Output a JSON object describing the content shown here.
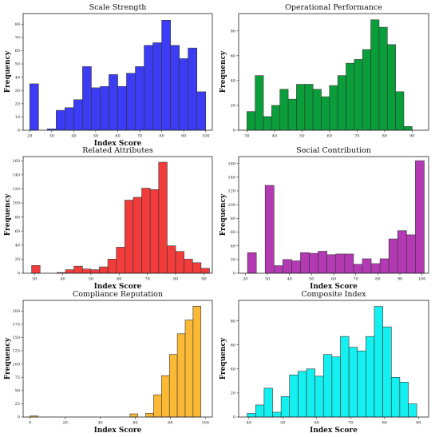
{
  "chart_data": [
    {
      "type": "bar",
      "title": "Scale Strength",
      "xlabel": "Index Score",
      "ylabel": "Frequency",
      "color": "#3c3cf4",
      "xlim": [
        17,
        103
      ],
      "ylim": [
        0,
        88
      ],
      "xticks": [
        20,
        30,
        40,
        50,
        60,
        70,
        80,
        90,
        100
      ],
      "yticks": [
        0,
        10,
        20,
        30,
        40,
        50,
        60,
        70,
        80
      ],
      "bins": [
        {
          "x0": 20,
          "x1": 24,
          "count": 35
        },
        {
          "x0": 28,
          "x1": 32,
          "count": 1
        },
        {
          "x0": 32,
          "x1": 36,
          "count": 15
        },
        {
          "x0": 36,
          "x1": 40,
          "count": 17
        },
        {
          "x0": 40,
          "x1": 44,
          "count": 23
        },
        {
          "x0": 44,
          "x1": 48,
          "count": 48
        },
        {
          "x0": 48,
          "x1": 52,
          "count": 32
        },
        {
          "x0": 52,
          "x1": 56,
          "count": 33
        },
        {
          "x0": 56,
          "x1": 60,
          "count": 42
        },
        {
          "x0": 60,
          "x1": 64,
          "count": 33
        },
        {
          "x0": 64,
          "x1": 68,
          "count": 43
        },
        {
          "x0": 68,
          "x1": 72,
          "count": 48
        },
        {
          "x0": 72,
          "x1": 76,
          "count": 64
        },
        {
          "x0": 76,
          "x1": 80,
          "count": 66
        },
        {
          "x0": 80,
          "x1": 84,
          "count": 83
        },
        {
          "x0": 84,
          "x1": 88,
          "count": 64
        },
        {
          "x0": 88,
          "x1": 92,
          "count": 54
        },
        {
          "x0": 92,
          "x1": 96,
          "count": 62
        },
        {
          "x0": 96,
          "x1": 100,
          "count": 29
        }
      ]
    },
    {
      "type": "bar",
      "title": "Operational Performance",
      "xlabel": "",
      "ylabel": "Frequency",
      "color": "#0a9e3a",
      "xlim": [
        27,
        96
      ],
      "ylim": [
        0,
        94
      ],
      "xticks": [
        30,
        40,
        50,
        60,
        70,
        80,
        90
      ],
      "yticks": [
        0,
        20,
        40,
        60,
        80
      ],
      "bins": [
        {
          "x0": 30,
          "x1": 33,
          "count": 15
        },
        {
          "x0": 33,
          "x1": 36,
          "count": 44
        },
        {
          "x0": 36,
          "x1": 39,
          "count": 11
        },
        {
          "x0": 39,
          "x1": 42,
          "count": 20
        },
        {
          "x0": 42,
          "x1": 45,
          "count": 33
        },
        {
          "x0": 45,
          "x1": 48,
          "count": 25
        },
        {
          "x0": 48,
          "x1": 51,
          "count": 37
        },
        {
          "x0": 51,
          "x1": 54,
          "count": 37
        },
        {
          "x0": 54,
          "x1": 57,
          "count": 33
        },
        {
          "x0": 57,
          "x1": 60,
          "count": 27
        },
        {
          "x0": 60,
          "x1": 63,
          "count": 36
        },
        {
          "x0": 63,
          "x1": 66,
          "count": 44
        },
        {
          "x0": 66,
          "x1": 69,
          "count": 54
        },
        {
          "x0": 69,
          "x1": 72,
          "count": 57
        },
        {
          "x0": 72,
          "x1": 75,
          "count": 65
        },
        {
          "x0": 75,
          "x1": 78,
          "count": 89
        },
        {
          "x0": 78,
          "x1": 81,
          "count": 83
        },
        {
          "x0": 81,
          "x1": 84,
          "count": 69
        },
        {
          "x0": 84,
          "x1": 87,
          "count": 31
        },
        {
          "x0": 87,
          "x1": 90,
          "count": 3
        }
      ]
    },
    {
      "type": "bar",
      "title": "Related Attributes",
      "xlabel": "Index Score",
      "ylabel": "Frequency",
      "color": "#f23c3c",
      "xlim": [
        26,
        93
      ],
      "ylim": [
        0,
        166
      ],
      "xticks": [
        30,
        40,
        50,
        60,
        70,
        80,
        90
      ],
      "yticks": [
        0,
        20,
        40,
        60,
        80,
        100,
        120,
        140,
        160
      ],
      "bins": [
        {
          "x0": 29,
          "x1": 32,
          "count": 11
        },
        {
          "x0": 38,
          "x1": 41,
          "count": 1
        },
        {
          "x0": 41,
          "x1": 44,
          "count": 5
        },
        {
          "x0": 44,
          "x1": 47,
          "count": 10
        },
        {
          "x0": 47,
          "x1": 50,
          "count": 6
        },
        {
          "x0": 50,
          "x1": 53,
          "count": 5
        },
        {
          "x0": 53,
          "x1": 56,
          "count": 9
        },
        {
          "x0": 56,
          "x1": 59,
          "count": 20
        },
        {
          "x0": 59,
          "x1": 62,
          "count": 37
        },
        {
          "x0": 62,
          "x1": 65,
          "count": 104
        },
        {
          "x0": 65,
          "x1": 68,
          "count": 108
        },
        {
          "x0": 68,
          "x1": 71,
          "count": 121
        },
        {
          "x0": 71,
          "x1": 74,
          "count": 119
        },
        {
          "x0": 74,
          "x1": 77,
          "count": 158
        },
        {
          "x0": 77,
          "x1": 80,
          "count": 39
        },
        {
          "x0": 80,
          "x1": 83,
          "count": 31
        },
        {
          "x0": 83,
          "x1": 86,
          "count": 20
        },
        {
          "x0": 86,
          "x1": 89,
          "count": 15
        },
        {
          "x0": 89,
          "x1": 92,
          "count": 7
        }
      ]
    },
    {
      "type": "bar",
      "title": "Social Contribution",
      "xlabel": "Index Score",
      "ylabel": "Frequency",
      "color": "#b33ab3",
      "xlim": [
        17,
        103
      ],
      "ylim": [
        0,
        170
      ],
      "xticks": [
        20,
        30,
        40,
        50,
        60,
        70,
        80,
        90,
        100
      ],
      "yticks": [
        0,
        20,
        40,
        60,
        80,
        100,
        120,
        140,
        160
      ],
      "bins": [
        {
          "x0": 21,
          "x1": 25,
          "count": 30
        },
        {
          "x0": 29,
          "x1": 33,
          "count": 128
        },
        {
          "x0": 33,
          "x1": 37,
          "count": 11
        },
        {
          "x0": 37,
          "x1": 41,
          "count": 20
        },
        {
          "x0": 41,
          "x1": 45,
          "count": 18
        },
        {
          "x0": 45,
          "x1": 49,
          "count": 30
        },
        {
          "x0": 49,
          "x1": 53,
          "count": 29
        },
        {
          "x0": 53,
          "x1": 57,
          "count": 32
        },
        {
          "x0": 57,
          "x1": 61,
          "count": 27
        },
        {
          "x0": 61,
          "x1": 65,
          "count": 28
        },
        {
          "x0": 65,
          "x1": 69,
          "count": 28
        },
        {
          "x0": 69,
          "x1": 73,
          "count": 13
        },
        {
          "x0": 73,
          "x1": 77,
          "count": 21
        },
        {
          "x0": 77,
          "x1": 81,
          "count": 14
        },
        {
          "x0": 81,
          "x1": 85,
          "count": 21
        },
        {
          "x0": 85,
          "x1": 89,
          "count": 50
        },
        {
          "x0": 89,
          "x1": 93,
          "count": 62
        },
        {
          "x0": 93,
          "x1": 97,
          "count": 56
        },
        {
          "x0": 97,
          "x1": 101,
          "count": 164
        }
      ]
    },
    {
      "type": "bar",
      "title": "Compliance Reputation",
      "xlabel": "Index Score",
      "ylabel": "Frequency",
      "color": "#fbb935",
      "xlim": [
        -4,
        104
      ],
      "ylim": [
        0,
        220
      ],
      "xticks": [
        0,
        20,
        40,
        60,
        80,
        100
      ],
      "yticks": [
        0,
        25,
        50,
        75,
        100,
        125,
        150,
        175,
        200
      ],
      "bins": [
        {
          "x0": 0,
          "x1": 4.5,
          "count": 2
        },
        {
          "x0": 57,
          "x1": 61.5,
          "count": 6
        },
        {
          "x0": 66,
          "x1": 70.5,
          "count": 7
        },
        {
          "x0": 70.5,
          "x1": 75,
          "count": 42
        },
        {
          "x0": 75,
          "x1": 79.5,
          "count": 78
        },
        {
          "x0": 79.5,
          "x1": 84,
          "count": 118
        },
        {
          "x0": 84,
          "x1": 88.5,
          "count": 157
        },
        {
          "x0": 88.5,
          "x1": 93,
          "count": 183
        },
        {
          "x0": 93,
          "x1": 97.5,
          "count": 209
        }
      ]
    },
    {
      "type": "bar",
      "title": "Composite Index",
      "xlabel": "Index Score",
      "ylabel": "Frequency",
      "color": "#14f0f0",
      "xlim": [
        37,
        93
      ],
      "ylim": [
        0,
        97
      ],
      "xticks": [
        40,
        50,
        60,
        70,
        80,
        90
      ],
      "yticks": [
        0,
        20,
        40,
        60,
        80
      ],
      "bins": [
        {
          "x0": 39.5,
          "x1": 42,
          "count": 3
        },
        {
          "x0": 42,
          "x1": 44.5,
          "count": 10
        },
        {
          "x0": 44.5,
          "x1": 47,
          "count": 24
        },
        {
          "x0": 47,
          "x1": 49.5,
          "count": 4
        },
        {
          "x0": 49.5,
          "x1": 52,
          "count": 17
        },
        {
          "x0": 52,
          "x1": 54.5,
          "count": 35
        },
        {
          "x0": 54.5,
          "x1": 57,
          "count": 38
        },
        {
          "x0": 57,
          "x1": 59.5,
          "count": 40
        },
        {
          "x0": 59.5,
          "x1": 62,
          "count": 34
        },
        {
          "x0": 62,
          "x1": 64.5,
          "count": 52
        },
        {
          "x0": 64.5,
          "x1": 67,
          "count": 50
        },
        {
          "x0": 67,
          "x1": 69.5,
          "count": 67
        },
        {
          "x0": 69.5,
          "x1": 72,
          "count": 58
        },
        {
          "x0": 72,
          "x1": 74.5,
          "count": 55
        },
        {
          "x0": 74.5,
          "x1": 77,
          "count": 67
        },
        {
          "x0": 77,
          "x1": 79.5,
          "count": 92
        },
        {
          "x0": 79.5,
          "x1": 82,
          "count": 75
        },
        {
          "x0": 82,
          "x1": 84.5,
          "count": 33
        },
        {
          "x0": 84.5,
          "x1": 87,
          "count": 29
        },
        {
          "x0": 87,
          "x1": 89.5,
          "count": 11
        }
      ]
    }
  ]
}
